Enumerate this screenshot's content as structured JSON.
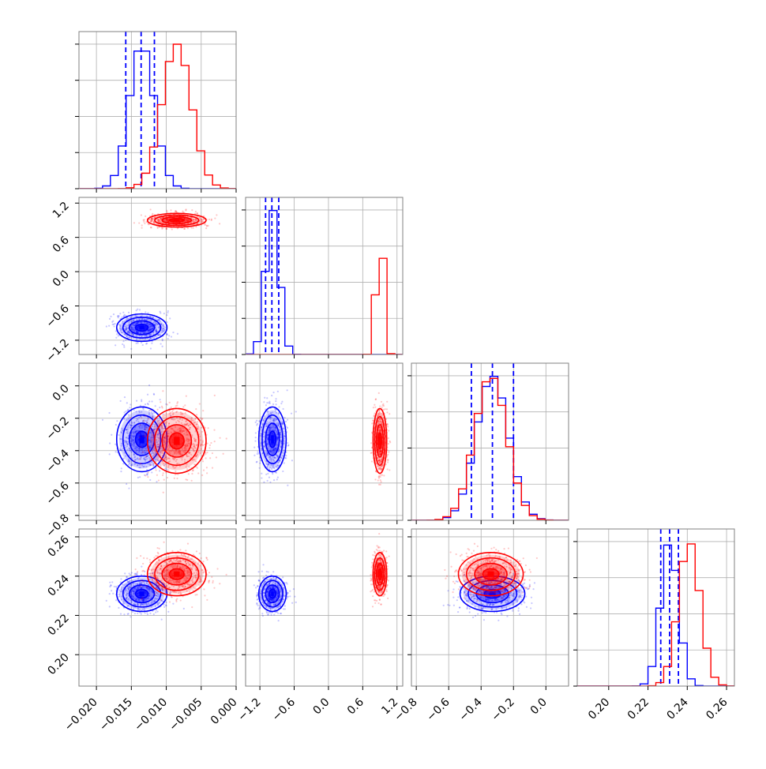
{
  "chart_data": {
    "type": "corner",
    "parameters": 4,
    "series": [
      {
        "name": "",
        "color": "#0000ff",
        "centers": [
          -0.0135,
          -0.98,
          -0.33,
          0.231
        ],
        "sigmas": [
          0.0018,
          0.12,
          0.1,
          0.0045
        ],
        "quantiles": [
          [
            -0.0158,
            -0.0136,
            -0.0117
          ],
          [
            -1.1,
            -0.99,
            -0.87
          ],
          [
            -0.46,
            -0.33,
            -0.2
          ],
          [
            0.2265,
            0.231,
            0.2355
          ]
        ]
      },
      {
        "name": "",
        "color": "#ff0000",
        "centers": [
          -0.0085,
          0.9,
          -0.34,
          0.241
        ],
        "sigmas": [
          0.0021,
          0.06,
          0.1,
          0.0055
        ],
        "quantiles": []
      }
    ],
    "axes": [
      {
        "range": [
          -0.0225,
          0.0
        ],
        "ticks": [
          {
            "v": -0.02,
            "label": "−0.020"
          },
          {
            "v": -0.015,
            "label": "−0.015"
          },
          {
            "v": -0.01,
            "label": "−0.010"
          },
          {
            "v": -0.005,
            "label": "−0.005"
          },
          {
            "v": 0.0,
            "label": "0.000"
          }
        ]
      },
      {
        "range": [
          -1.45,
          1.3
        ],
        "ticks": [
          {
            "v": -1.2,
            "label": "−1.2"
          },
          {
            "v": -0.6,
            "label": "−0.6"
          },
          {
            "v": 0.0,
            "label": "0.0"
          },
          {
            "v": 0.6,
            "label": "0.6"
          },
          {
            "v": 1.2,
            "label": "1.2"
          }
        ]
      },
      {
        "range": [
          -0.83,
          0.14
        ],
        "ticks": [
          {
            "v": -0.8,
            "label": "−0.8"
          },
          {
            "v": -0.6,
            "label": "−0.6"
          },
          {
            "v": -0.4,
            "label": "−0.4"
          },
          {
            "v": -0.2,
            "label": "−0.2"
          },
          {
            "v": 0.0,
            "label": "0.0"
          }
        ]
      },
      {
        "range": [
          0.184,
          0.264
        ],
        "ticks": [
          {
            "v": 0.2,
            "label": "0.20"
          },
          {
            "v": 0.22,
            "label": "0.22"
          },
          {
            "v": 0.24,
            "label": "0.24"
          },
          {
            "v": 0.26,
            "label": "0.26"
          }
        ]
      }
    ],
    "contour_levels_sigma": [
      0.5,
      1.0,
      1.5,
      2.0
    ],
    "quantile_line_style": "dashed",
    "grid": true,
    "title": "",
    "xlabel": "",
    "ylabel": ""
  }
}
